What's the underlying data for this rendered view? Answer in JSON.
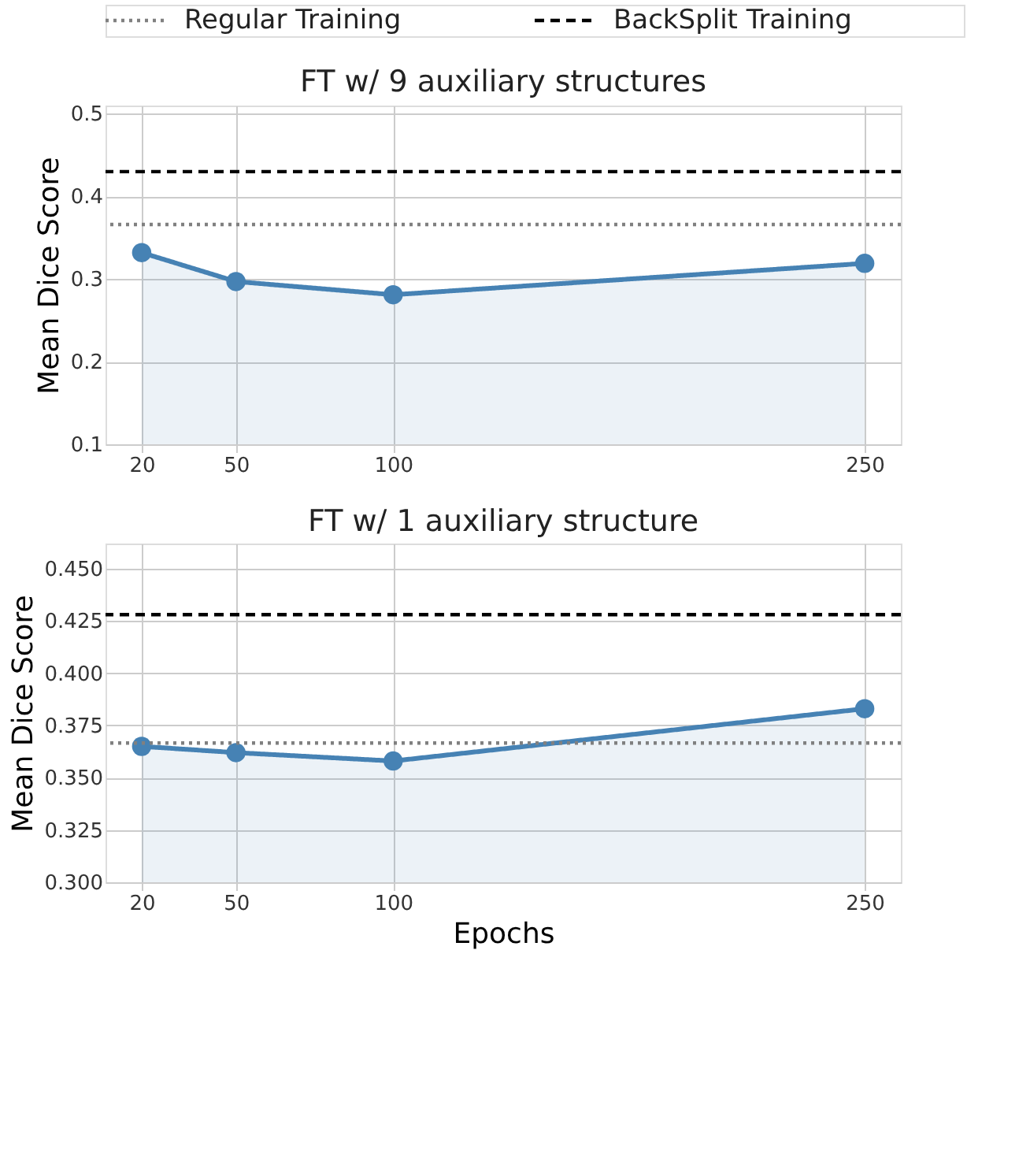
{
  "chart_data": [
    {
      "type": "area",
      "title": "FT w/ 9 auxiliary structures",
      "ylabel": "Mean Dice Score",
      "x": [
        20,
        50,
        100,
        250
      ],
      "series": [
        {
          "color": "#4682b4",
          "values": [
            0.332,
            0.297,
            0.281,
            0.319
          ]
        }
      ],
      "xlim": [
        8.5,
        261.5
      ],
      "xticks": [
        20,
        50,
        100,
        250
      ],
      "ylim": [
        0.1,
        0.51
      ],
      "yticks": [
        0.1,
        0.2,
        0.3,
        0.4,
        0.5
      ],
      "ref_lines": [
        {
          "axis": "y",
          "value": 0.366,
          "label": "Regular Training",
          "color": "#808080",
          "line_style": "dotted"
        },
        {
          "axis": "y",
          "value": 0.43,
          "label": "BackSplit Training",
          "color": "#000000",
          "line_style": "dashed"
        }
      ],
      "marker": "circle",
      "grid": true,
      "legend": "top"
    },
    {
      "type": "area",
      "title": "FT w/ 1 auxiliary structure",
      "xlabel": "Epochs",
      "ylabel": "Mean Dice Score",
      "x": [
        20,
        50,
        100,
        250
      ],
      "series": [
        {
          "color": "#4682b4",
          "values": [
            0.365,
            0.362,
            0.358,
            0.383
          ]
        }
      ],
      "xlim": [
        8.5,
        261.5
      ],
      "xticks": [
        20,
        50,
        100,
        250
      ],
      "ylim": [
        0.3,
        0.462
      ],
      "yticks": [
        {
          "value": 0.3,
          "label": "0.300"
        },
        0.325,
        {
          "value": 0.35,
          "label": "0.350"
        },
        0.375,
        {
          "value": 0.4,
          "label": "0.400"
        },
        0.425,
        {
          "value": 0.45,
          "label": "0.450"
        }
      ],
      "ref_lines": [
        {
          "axis": "y",
          "value": 0.3666,
          "color": "#808080",
          "line_style": "dotted"
        },
        {
          "axis": "y",
          "value": 0.428,
          "color": "#000000",
          "line_style": "dashed"
        }
      ],
      "marker": "circle",
      "grid": true
    }
  ]
}
